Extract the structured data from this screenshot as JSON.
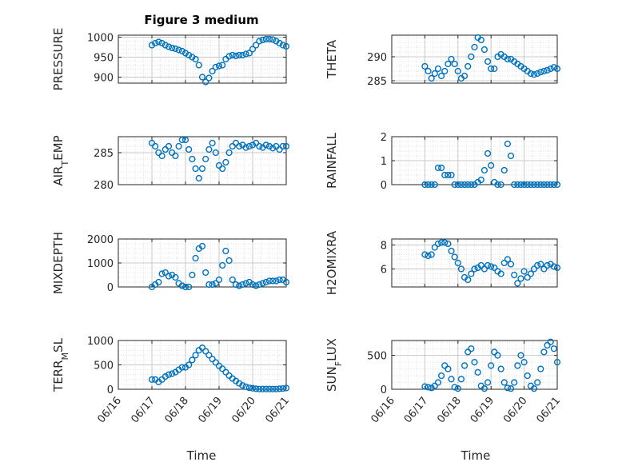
{
  "figure": {
    "title": "Figure 3 medium",
    "x_axis_label": "Time"
  },
  "style": {
    "marker_color": "#0072BD",
    "axis_color": "#262626",
    "grid_color": "#d9d9d9",
    "background": "#ffffff"
  },
  "chart_data": [
    {
      "type": "scatter",
      "ylabel": "PRESSURE",
      "ylim": [
        885,
        1005
      ],
      "yticks": [
        "900",
        "950",
        "1000"
      ],
      "ytick_values": [
        900,
        950,
        1000
      ],
      "xlim": [
        "06/16",
        "06/21"
      ],
      "xticks": [
        "06/16",
        "06/17",
        "06/18",
        "06/19",
        "06/20",
        "06/21"
      ],
      "grid": true,
      "series": [
        {
          "x": [
            1.0,
            1.1,
            1.2,
            1.3,
            1.4,
            1.5,
            1.6,
            1.7,
            1.8,
            1.9,
            2.0,
            2.1,
            2.2,
            2.3,
            2.4,
            2.5,
            2.6,
            2.7,
            2.8,
            2.9,
            3.0,
            3.1,
            3.2,
            3.3,
            3.4,
            3.5,
            3.6,
            3.7,
            3.8,
            3.9,
            4.0,
            4.1,
            4.2,
            4.3,
            4.4,
            4.5,
            4.6,
            4.7,
            4.8,
            4.9,
            5.0
          ],
          "y": [
            980,
            985,
            988,
            985,
            980,
            976,
            973,
            971,
            968,
            965,
            960,
            955,
            950,
            945,
            930,
            900,
            888,
            898,
            915,
            925,
            928,
            930,
            945,
            952,
            955,
            953,
            955,
            955,
            958,
            960,
            970,
            980,
            990,
            993,
            995,
            995,
            994,
            990,
            985,
            980,
            977
          ]
        }
      ]
    },
    {
      "type": "scatter",
      "ylabel": "THETA",
      "ylim": [
        284.5,
        294.5
      ],
      "yticks": [
        "285",
        "290"
      ],
      "ytick_values": [
        285,
        290
      ],
      "xlim": [
        "06/16",
        "06/21"
      ],
      "xticks": [
        "06/16",
        "06/17",
        "06/18",
        "06/19",
        "06/20",
        "06/21"
      ],
      "grid": true,
      "series": [
        {
          "x": [
            1.0,
            1.1,
            1.2,
            1.3,
            1.4,
            1.5,
            1.6,
            1.7,
            1.8,
            1.9,
            2.0,
            2.1,
            2.2,
            2.3,
            2.4,
            2.5,
            2.6,
            2.7,
            2.8,
            2.9,
            3.0,
            3.1,
            3.2,
            3.3,
            3.4,
            3.5,
            3.6,
            3.7,
            3.8,
            3.9,
            4.0,
            4.1,
            4.2,
            4.3,
            4.4,
            4.5,
            4.6,
            4.7,
            4.8,
            4.9,
            5.0
          ],
          "y": [
            288,
            287,
            285.5,
            286.5,
            287.5,
            286,
            287,
            288.5,
            289.5,
            288.5,
            287,
            285.5,
            286,
            288,
            290,
            292,
            294,
            293.5,
            291.5,
            289,
            287.5,
            287.5,
            290,
            290.5,
            290,
            289.5,
            289.5,
            289,
            288.5,
            288,
            287.5,
            287,
            286.5,
            286.3,
            286.5,
            286.8,
            287,
            287.2,
            287.5,
            287.8,
            287.5
          ]
        }
      ]
    },
    {
      "type": "scatter",
      "ylabel": "AIR_TEMP",
      "ylim": [
        280,
        287.5
      ],
      "yticks": [
        "280",
        "285"
      ],
      "ytick_values": [
        280,
        285
      ],
      "xlim": [
        "06/16",
        "06/21"
      ],
      "xticks": [
        "06/16",
        "06/17",
        "06/18",
        "06/19",
        "06/20",
        "06/21"
      ],
      "grid": true,
      "series": [
        {
          "x": [
            1.0,
            1.1,
            1.2,
            1.3,
            1.4,
            1.5,
            1.6,
            1.7,
            1.8,
            1.9,
            2.0,
            2.1,
            2.2,
            2.3,
            2.4,
            2.5,
            2.6,
            2.7,
            2.8,
            2.9,
            3.0,
            3.1,
            3.2,
            3.3,
            3.4,
            3.5,
            3.6,
            3.7,
            3.8,
            3.9,
            4.0,
            4.1,
            4.2,
            4.3,
            4.4,
            4.5,
            4.6,
            4.7,
            4.8,
            4.9,
            5.0
          ],
          "y": [
            286.5,
            286,
            285,
            284.5,
            285.5,
            286,
            285,
            284.5,
            286,
            287,
            287,
            285.5,
            284,
            282.5,
            281,
            282.5,
            284,
            285.5,
            286.5,
            285,
            283,
            282.5,
            283.5,
            285,
            286,
            286.5,
            286,
            286.2,
            285.8,
            286,
            286.2,
            286.5,
            286,
            285.8,
            286.2,
            286,
            285.7,
            286,
            285.5,
            286,
            286
          ]
        }
      ]
    },
    {
      "type": "scatter",
      "ylabel": "RAINFALL",
      "ylim": [
        0,
        2
      ],
      "yticks": [
        "0",
        "1",
        "2"
      ],
      "ytick_values": [
        0,
        1,
        2
      ],
      "xlim": [
        "06/16",
        "06/21"
      ],
      "xticks": [
        "06/16",
        "06/17",
        "06/18",
        "06/19",
        "06/20",
        "06/21"
      ],
      "grid": true,
      "series": [
        {
          "x": [
            1.0,
            1.1,
            1.2,
            1.3,
            1.4,
            1.5,
            1.6,
            1.7,
            1.8,
            1.9,
            2.0,
            2.1,
            2.2,
            2.3,
            2.4,
            2.5,
            2.6,
            2.7,
            2.8,
            2.9,
            3.0,
            3.1,
            3.2,
            3.3,
            3.4,
            3.5,
            3.6,
            3.7,
            3.8,
            3.9,
            4.0,
            4.1,
            4.2,
            4.3,
            4.4,
            4.5,
            4.6,
            4.7,
            4.8,
            4.9,
            5.0
          ],
          "y": [
            0,
            0,
            0,
            0,
            0.7,
            0.7,
            0.4,
            0.4,
            0.4,
            0,
            0,
            0,
            0,
            0,
            0,
            0,
            0.1,
            0.2,
            0.6,
            1.3,
            0.8,
            0.1,
            0,
            0,
            0.6,
            1.7,
            1.2,
            0,
            0,
            0,
            0,
            0,
            0,
            0,
            0,
            0,
            0,
            0,
            0,
            0,
            0
          ]
        }
      ]
    },
    {
      "type": "scatter",
      "ylabel": "MIXDEPTH",
      "ylim": [
        0,
        2000
      ],
      "yticks": [
        "0",
        "1000",
        "2000"
      ],
      "ytick_values": [
        0,
        1000,
        2000
      ],
      "xlim": [
        "06/16",
        "06/21"
      ],
      "xticks": [
        "06/16",
        "06/17",
        "06/18",
        "06/19",
        "06/20",
        "06/21"
      ],
      "grid": true,
      "series": [
        {
          "x": [
            1.0,
            1.1,
            1.2,
            1.3,
            1.4,
            1.5,
            1.6,
            1.7,
            1.8,
            1.9,
            2.0,
            2.1,
            2.2,
            2.3,
            2.4,
            2.5,
            2.6,
            2.7,
            2.8,
            2.9,
            3.0,
            3.1,
            3.2,
            3.3,
            3.4,
            3.5,
            3.6,
            3.7,
            3.8,
            3.9,
            4.0,
            4.1,
            4.2,
            4.3,
            4.4,
            4.5,
            4.6,
            4.7,
            4.8,
            4.9,
            5.0
          ],
          "y": [
            0,
            100,
            200,
            550,
            600,
            450,
            500,
            400,
            150,
            50,
            0,
            0,
            500,
            1200,
            1600,
            1700,
            600,
            100,
            100,
            150,
            300,
            900,
            1500,
            1100,
            300,
            100,
            50,
            100,
            150,
            200,
            100,
            50,
            100,
            150,
            200,
            250,
            250,
            250,
            300,
            300,
            200
          ]
        }
      ]
    },
    {
      "type": "scatter",
      "ylabel": "H2OMIXRA",
      "ylim": [
        4.5,
        8.5
      ],
      "yticks": [
        "6",
        "8"
      ],
      "ytick_values": [
        6,
        8
      ],
      "xlim": [
        "06/16",
        "06/21"
      ],
      "xticks": [
        "06/16",
        "06/17",
        "06/18",
        "06/19",
        "06/20",
        "06/21"
      ],
      "grid": true,
      "series": [
        {
          "x": [
            1.0,
            1.1,
            1.2,
            1.3,
            1.4,
            1.5,
            1.6,
            1.7,
            1.8,
            1.9,
            2.0,
            2.1,
            2.2,
            2.3,
            2.4,
            2.5,
            2.6,
            2.7,
            2.8,
            2.9,
            3.0,
            3.1,
            3.2,
            3.3,
            3.4,
            3.5,
            3.6,
            3.7,
            3.8,
            3.9,
            4.0,
            4.1,
            4.2,
            4.3,
            4.4,
            4.5,
            4.6,
            4.7,
            4.8,
            4.9,
            5.0
          ],
          "y": [
            7.2,
            7.1,
            7.2,
            7.8,
            8.1,
            8.2,
            8.2,
            8.1,
            7.5,
            7.0,
            6.5,
            6.0,
            5.3,
            5.1,
            5.6,
            6.0,
            6.1,
            6.3,
            6.0,
            6.3,
            6.2,
            6.1,
            5.8,
            5.6,
            6.5,
            6.8,
            6.4,
            5.5,
            4.8,
            5.2,
            5.8,
            5.3,
            5.6,
            6.0,
            6.3,
            6.4,
            6.0,
            6.3,
            6.4,
            6.2,
            6.1
          ]
        }
      ]
    },
    {
      "type": "scatter",
      "ylabel": "TERR_MSL",
      "ylim": [
        0,
        1000
      ],
      "yticks": [
        "0",
        "500",
        "1000"
      ],
      "ytick_values": [
        0,
        500,
        1000
      ],
      "xlim": [
        "06/16",
        "06/21"
      ],
      "xticks": [
        "06/16",
        "06/17",
        "06/18",
        "06/19",
        "06/20",
        "06/21"
      ],
      "grid": true,
      "series": [
        {
          "x": [
            1.0,
            1.1,
            1.2,
            1.3,
            1.4,
            1.5,
            1.6,
            1.7,
            1.8,
            1.9,
            2.0,
            2.1,
            2.2,
            2.3,
            2.4,
            2.5,
            2.6,
            2.7,
            2.8,
            2.9,
            3.0,
            3.1,
            3.2,
            3.3,
            3.4,
            3.5,
            3.6,
            3.7,
            3.8,
            3.9,
            4.0,
            4.1,
            4.2,
            4.3,
            4.4,
            4.5,
            4.6,
            4.7,
            4.8,
            4.9,
            5.0
          ],
          "y": [
            200,
            200,
            150,
            200,
            260,
            300,
            320,
            350,
            400,
            450,
            450,
            500,
            600,
            700,
            800,
            850,
            780,
            700,
            620,
            550,
            480,
            420,
            350,
            280,
            220,
            170,
            120,
            80,
            50,
            30,
            20,
            10,
            5,
            5,
            5,
            5,
            5,
            5,
            10,
            15,
            25
          ]
        }
      ]
    },
    {
      "type": "scatter",
      "ylabel": "SUN_FLUX",
      "ylim": [
        0,
        720
      ],
      "yticks": [
        "0",
        "500"
      ],
      "ytick_values": [
        0,
        500
      ],
      "xlim": [
        "06/16",
        "06/21"
      ],
      "xticks": [
        "06/16",
        "06/17",
        "06/18",
        "06/19",
        "06/20",
        "06/21"
      ],
      "grid": true,
      "series": [
        {
          "x": [
            1.0,
            1.1,
            1.2,
            1.3,
            1.4,
            1.5,
            1.6,
            1.7,
            1.8,
            1.9,
            2.0,
            2.1,
            2.2,
            2.3,
            2.4,
            2.5,
            2.6,
            2.7,
            2.8,
            2.9,
            3.0,
            3.1,
            3.2,
            3.3,
            3.4,
            3.5,
            3.6,
            3.7,
            3.8,
            3.9,
            4.0,
            4.1,
            4.2,
            4.3,
            4.4,
            4.5,
            4.6,
            4.7,
            4.8,
            4.9,
            5.0
          ],
          "y": [
            40,
            30,
            20,
            50,
            100,
            200,
            350,
            300,
            150,
            30,
            10,
            150,
            350,
            550,
            600,
            400,
            250,
            50,
            10,
            100,
            350,
            550,
            500,
            300,
            100,
            20,
            10,
            100,
            350,
            500,
            400,
            200,
            50,
            10,
            100,
            300,
            550,
            650,
            700,
            600,
            400
          ]
        }
      ]
    }
  ]
}
